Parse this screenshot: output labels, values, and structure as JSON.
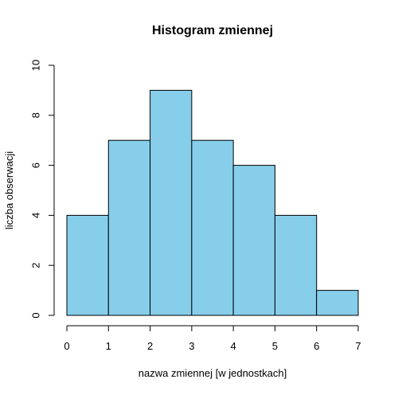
{
  "chart_data": {
    "type": "bar",
    "subtype": "histogram",
    "title": "Histogram zmiennej",
    "xlabel": "nazwa zmiennej [w jednostkach]",
    "ylabel": "liczba obserwacji",
    "bins": [
      {
        "from": 0,
        "to": 1,
        "count": 4
      },
      {
        "from": 1,
        "to": 2,
        "count": 7
      },
      {
        "from": 2,
        "to": 3,
        "count": 9
      },
      {
        "from": 3,
        "to": 4,
        "count": 7
      },
      {
        "from": 4,
        "to": 5,
        "count": 6
      },
      {
        "from": 5,
        "to": 6,
        "count": 4
      },
      {
        "from": 6,
        "to": 7,
        "count": 1
      }
    ],
    "xlim": [
      0,
      7
    ],
    "ylim": [
      0,
      10
    ],
    "xticks": [
      "0",
      "1",
      "2",
      "3",
      "4",
      "5",
      "6",
      "7"
    ],
    "yticks": [
      "0",
      "2",
      "4",
      "6",
      "8",
      "10"
    ],
    "bar_color": "#87CEEB",
    "bar_border_color": "#000000",
    "grid": false,
    "legend": "none"
  }
}
